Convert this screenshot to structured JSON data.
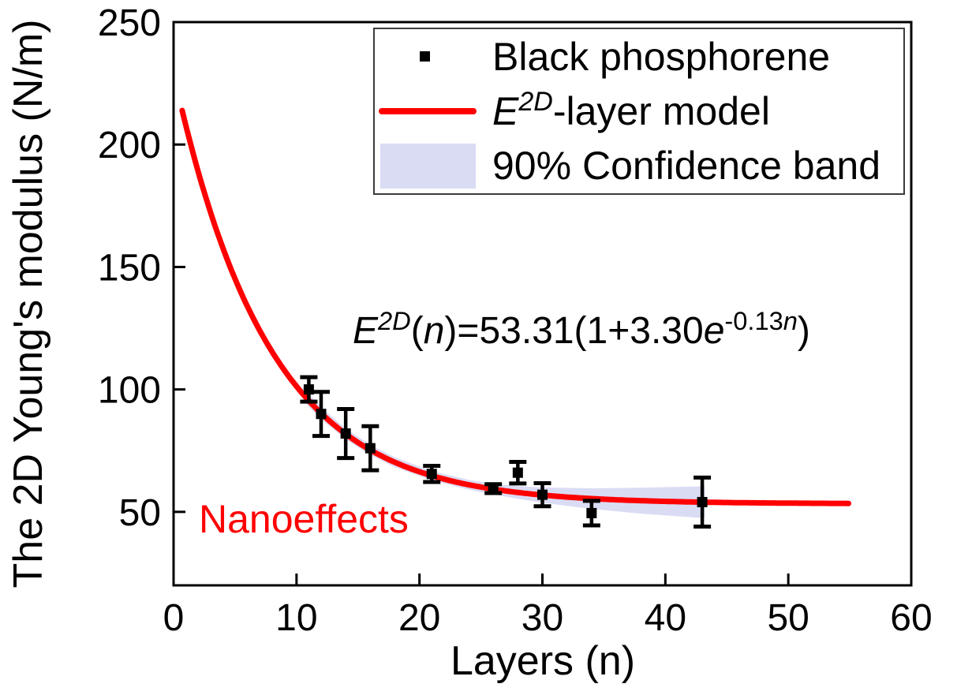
{
  "legend": {
    "items": [
      {
        "label": "Black phosphorene",
        "marker": "black-square"
      },
      {
        "label_e": "E",
        "label_sup": "2D",
        "label_rest": "-layer model",
        "marker": "red-line"
      },
      {
        "label": "90% Confidence band",
        "marker": "lavender-band"
      }
    ]
  },
  "annotations": {
    "equation": {
      "E": "E",
      "sup": "2D",
      "open": "(",
      "n": "n",
      "mid": ")=53.31(1+3.30",
      "e": "e",
      "exp_coef": "-0.13",
      "exp_n": "n",
      "close": ")"
    },
    "nanoeffects": "Nanoeffects"
  },
  "chart_data": {
    "type": "scatter+line+band",
    "title": "",
    "xlabel": "Layers (n)",
    "ylabel": "The 2D Young's modulus (N/m)",
    "xlim": [
      0,
      60
    ],
    "ylim": [
      20,
      250
    ],
    "x_ticks": [
      0,
      10,
      20,
      30,
      40,
      50,
      60
    ],
    "y_ticks": [
      250,
      200,
      150,
      100,
      50
    ],
    "grid": false,
    "legend_position": "top-right",
    "colors": {
      "curve": "#FF0000",
      "band": "#DADCF4",
      "marker": "#000000",
      "annotation_red": "#FF0000",
      "frame": "#000000"
    },
    "points": {
      "name": "Black phosphorene",
      "n": [
        11,
        12,
        14,
        16,
        21,
        26,
        28,
        30,
        34,
        43
      ],
      "E": [
        100,
        90,
        82,
        76,
        65.5,
        59.5,
        66,
        57,
        49.5,
        54
      ],
      "err": [
        5,
        9,
        10,
        9,
        3.3,
        1.8,
        4.4,
        4.7,
        5,
        10
      ]
    },
    "model": {
      "name": "E2D-layer model",
      "equation": "E2D(n)=53.31(1+3.30e^(-0.13n))",
      "E_infinity": 53.31,
      "amplitude": 3.3,
      "decay": 0.13,
      "n_start": 0.7,
      "n_end": 55
    },
    "confidence_band": {
      "name": "90% Confidence band",
      "level": "90%",
      "n": [
        10.5,
        12,
        14,
        16,
        18,
        21,
        24,
        26,
        28,
        30,
        34,
        38,
        43.2
      ],
      "half_width": [
        2.8,
        2.5,
        2.2,
        2.1,
        2.0,
        1.9,
        2.0,
        2.2,
        2.6,
        3.1,
        4.2,
        5.3,
        6.5
      ]
    }
  }
}
